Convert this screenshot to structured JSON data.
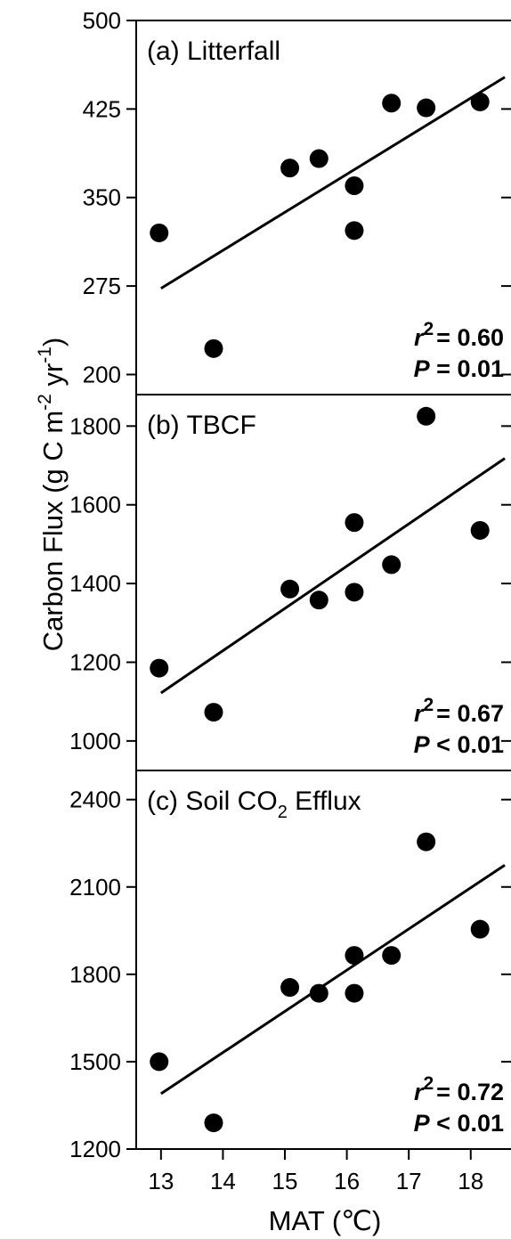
{
  "chart_data": {
    "type": "scatter",
    "ylabel": "Carbon Flux (g C m-2 yr-1)",
    "ylabel_parts": {
      "main": "Carbon Flux (g C m",
      "exp1": "-2",
      "mid": " yr",
      "exp2": "-1",
      "end": ")"
    },
    "xlabel": "MAT (℃)",
    "xlim": [
      12.6,
      18.65
    ],
    "xticks": [
      13,
      14,
      15,
      16,
      17,
      18
    ],
    "xtick_labels": [
      "13",
      "14",
      "15",
      "16",
      "17",
      "18"
    ],
    "x": [
      12.97,
      13.85,
      15.08,
      15.55,
      16.12,
      16.12,
      16.72,
      17.28,
      18.15
    ],
    "panels": [
      {
        "label": "(a) Litterfall",
        "ylim": [
          183,
          500
        ],
        "yticks": [
          200,
          275,
          350,
          425,
          500
        ],
        "ytick_labels": [
          "200",
          "275",
          "350",
          "425",
          "500"
        ],
        "y": [
          320,
          222,
          375,
          383,
          360,
          322,
          430,
          426,
          431
        ],
        "fit": {
          "x": [
            13.0,
            18.55
          ],
          "y": [
            273,
            452
          ]
        },
        "r2_label": "r",
        "r2_sup": "2",
        "r2_value": "= 0.60",
        "p_label": "P",
        "p_value": "= 0.01"
      },
      {
        "label": "(b) TBCF",
        "ylim": [
          925,
          1880
        ],
        "yticks": [
          1000,
          1200,
          1400,
          1600,
          1800
        ],
        "ytick_labels": [
          "1000",
          "1200",
          "1400",
          "1600",
          "1800"
        ],
        "y": [
          1185,
          1073,
          1386,
          1358,
          1378,
          1555,
          1448,
          1825,
          1535
        ],
        "fit": {
          "x": [
            13.0,
            18.55
          ],
          "y": [
            1122,
            1718
          ]
        },
        "r2_label": "r",
        "r2_sup": "2",
        "r2_value": "= 0.67",
        "p_label": "P",
        "p_value": "< 0.01"
      },
      {
        "label": "(c) Soil CO",
        "label_sub": "2",
        "label_end": " Efflux",
        "ylim": [
          1200,
          2500
        ],
        "yticks": [
          1200,
          1500,
          1800,
          2100,
          2400
        ],
        "ytick_labels": [
          "1200",
          "1500",
          "1800",
          "2100",
          "2400"
        ],
        "y": [
          1500,
          1290,
          1755,
          1735,
          1735,
          1865,
          1865,
          2255,
          1955
        ],
        "fit": {
          "x": [
            13.0,
            18.55
          ],
          "y": [
            1390,
            2175
          ]
        },
        "r2_label": "r",
        "r2_sup": "2",
        "r2_value": "= 0.72",
        "p_label": "P",
        "p_value": "< 0.01"
      }
    ]
  }
}
